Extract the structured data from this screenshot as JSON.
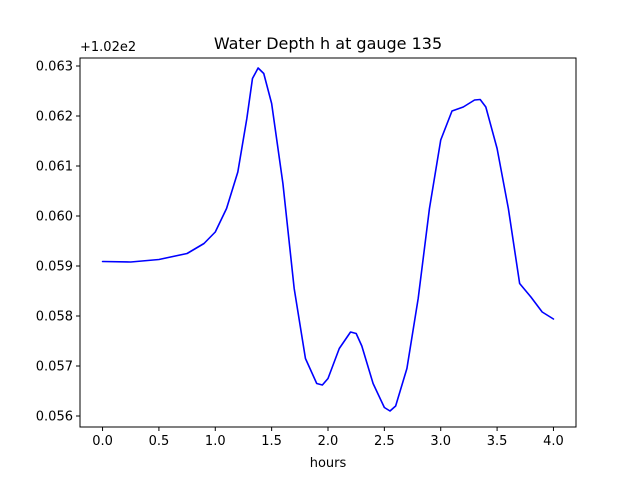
{
  "chart_data": {
    "type": "line",
    "title": "Water Depth h at gauge 135",
    "xlabel": "hours",
    "ylabel": "",
    "y_offset_label": "+1.02e2",
    "y_offset": 102,
    "xlim": [
      -0.2,
      4.2
    ],
    "ylim": [
      0.05578,
      0.06316
    ],
    "x_ticks": [
      0.0,
      0.5,
      1.0,
      1.5,
      2.0,
      2.5,
      3.0,
      3.5,
      4.0
    ],
    "x_tick_labels": [
      "0.0",
      "0.5",
      "1.0",
      "1.5",
      "2.0",
      "2.5",
      "3.0",
      "3.5",
      "4.0"
    ],
    "y_ticks": [
      0.056,
      0.057,
      0.058,
      0.059,
      0.06,
      0.061,
      0.062,
      0.063
    ],
    "y_tick_labels": [
      "0.056",
      "0.057",
      "0.058",
      "0.059",
      "0.060",
      "0.061",
      "0.062",
      "0.063"
    ],
    "grid": false,
    "series": [
      {
        "color": "#0000ff",
        "x": [
          0.0,
          0.25,
          0.5,
          0.75,
          0.9,
          1.0,
          1.1,
          1.2,
          1.28,
          1.33,
          1.38,
          1.43,
          1.5,
          1.6,
          1.7,
          1.8,
          1.9,
          1.95,
          2.0,
          2.1,
          2.2,
          2.25,
          2.3,
          2.4,
          2.5,
          2.55,
          2.6,
          2.7,
          2.8,
          2.9,
          3.0,
          3.1,
          3.2,
          3.3,
          3.35,
          3.4,
          3.5,
          3.6,
          3.7,
          3.8,
          3.9,
          4.0
        ],
        "y": [
          0.05909,
          0.05908,
          0.05913,
          0.05925,
          0.05945,
          0.05968,
          0.06015,
          0.06088,
          0.06195,
          0.06275,
          0.06296,
          0.06285,
          0.06225,
          0.06065,
          0.05855,
          0.05715,
          0.05665,
          0.05662,
          0.05675,
          0.05735,
          0.05768,
          0.05765,
          0.0574,
          0.05665,
          0.05617,
          0.0561,
          0.0562,
          0.05695,
          0.05835,
          0.06015,
          0.06152,
          0.0621,
          0.06218,
          0.06232,
          0.06233,
          0.06218,
          0.06135,
          0.06015,
          0.05865,
          0.05838,
          0.05808,
          0.05794
        ]
      }
    ]
  }
}
